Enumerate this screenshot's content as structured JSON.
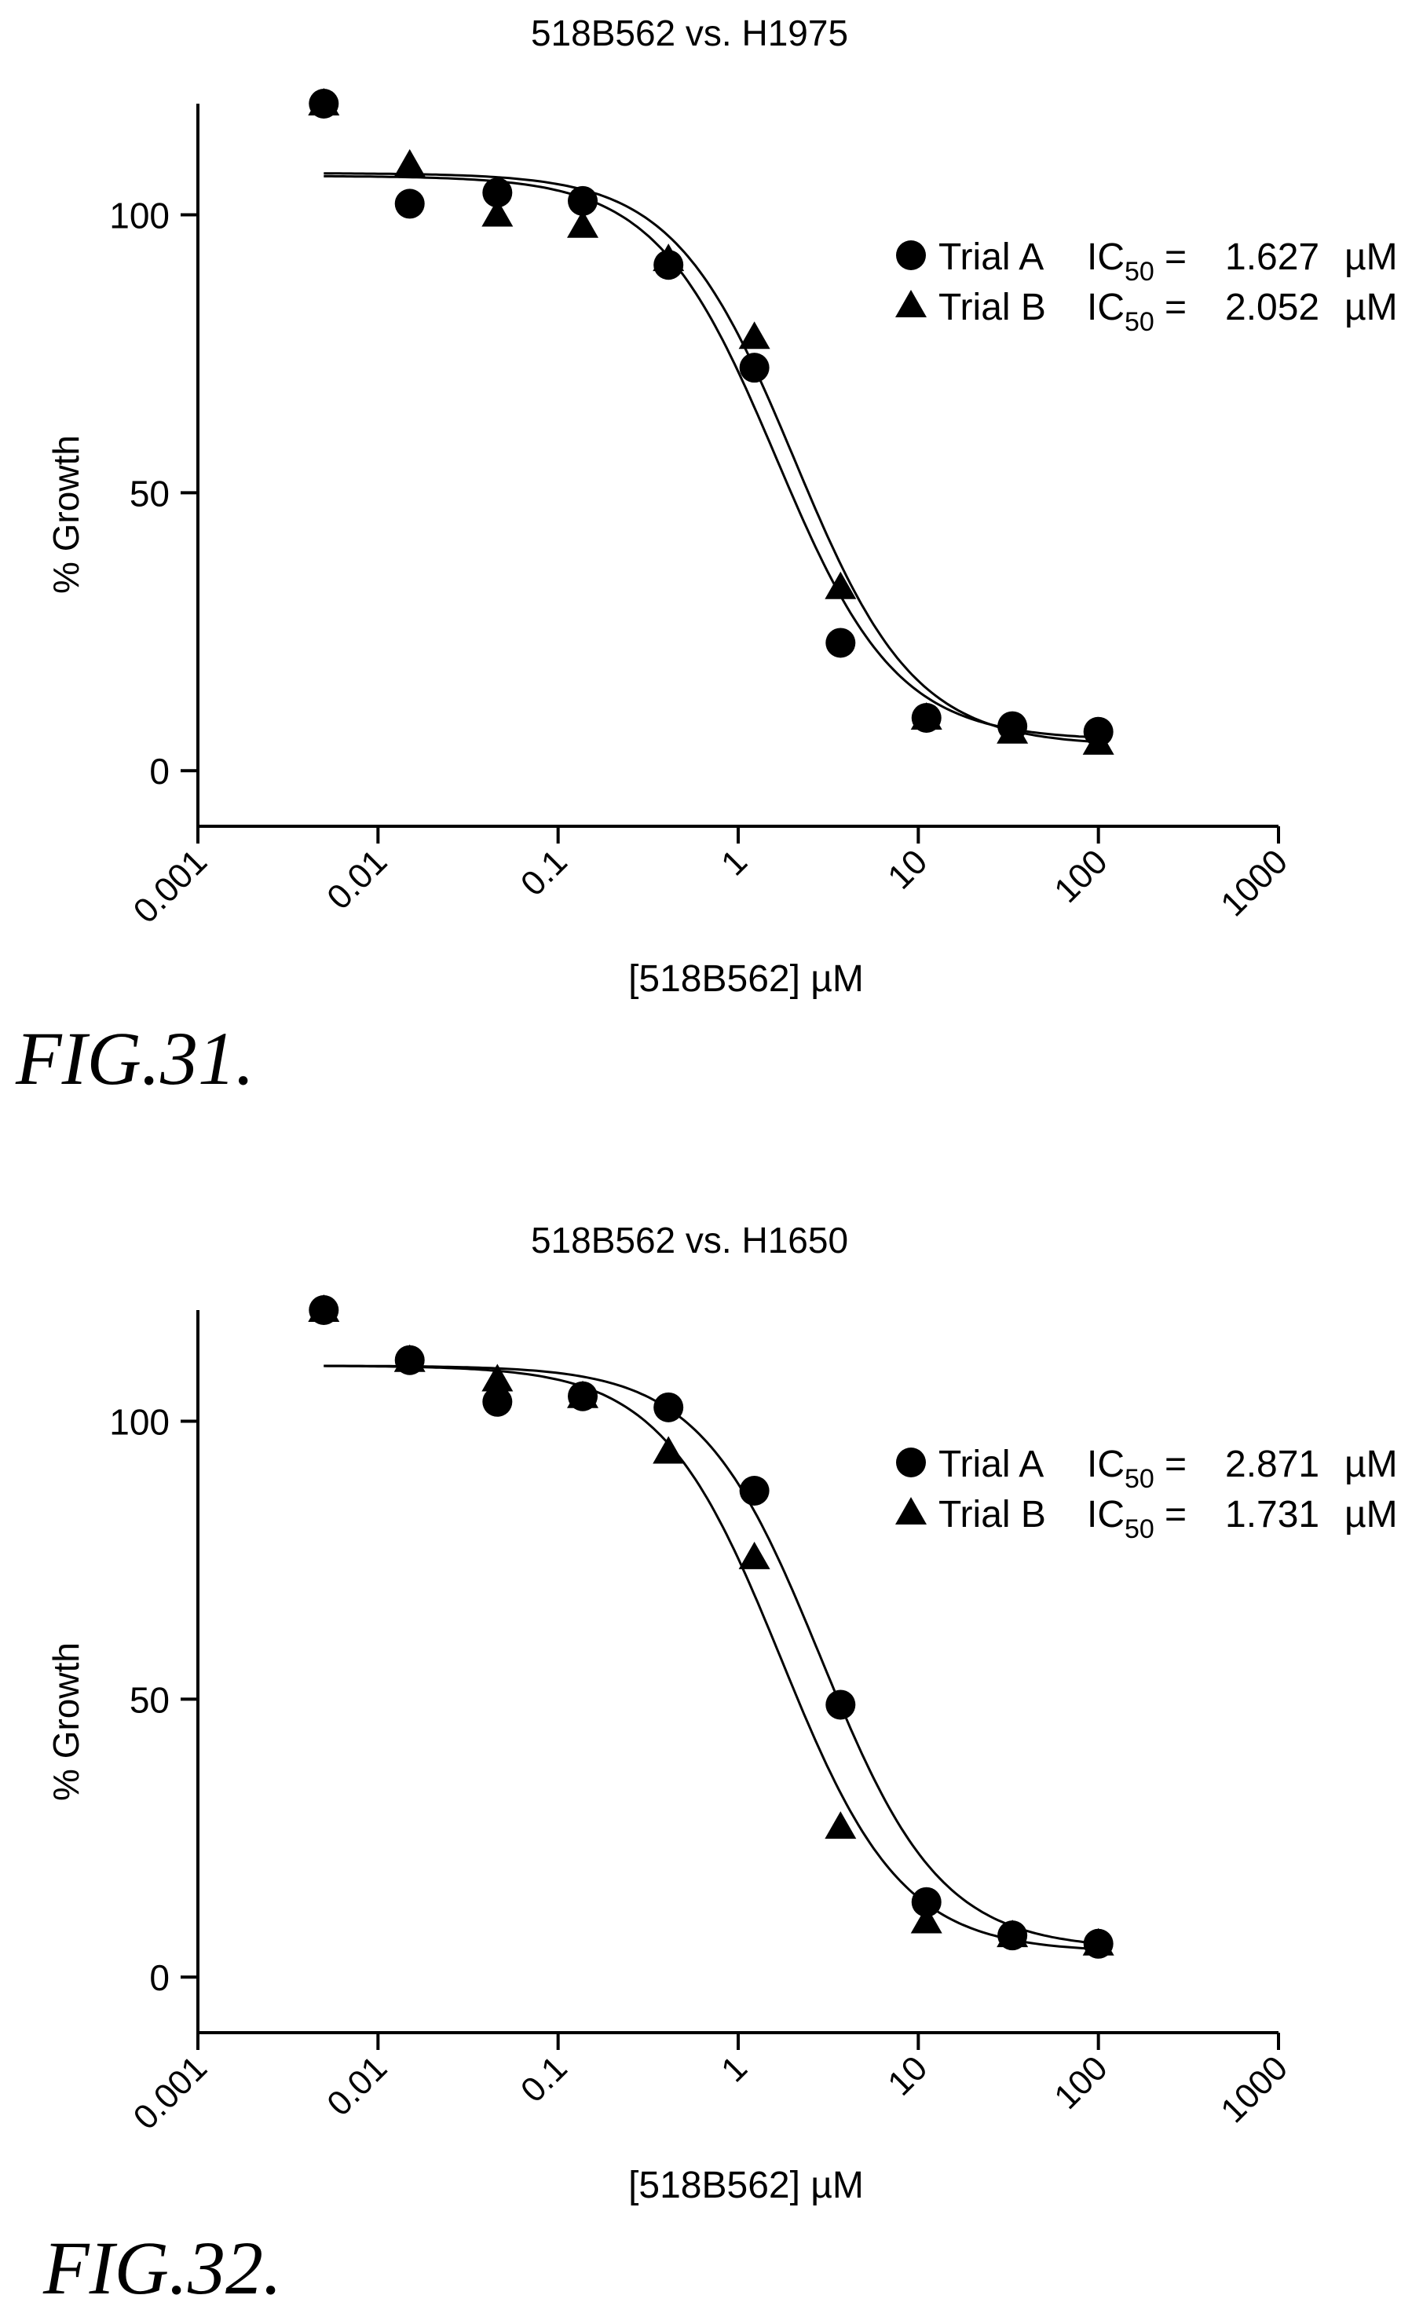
{
  "chart_data": [
    {
      "type": "scatter",
      "title": "518B562 vs. H1975",
      "figure_label": "FIG.31.",
      "xlabel": "[518B562] µM",
      "ylabel": "% Growth",
      "xscale": "log",
      "xlim": [
        0.001,
        1000
      ],
      "ylim": [
        -10,
        120
      ],
      "x_ticks": [
        "0.001",
        "0.01",
        "0.1",
        "1",
        "10",
        "100",
        "1000"
      ],
      "y_ticks": [
        "0",
        "50",
        "100"
      ],
      "grid": false,
      "legend_position": "right",
      "series": [
        {
          "name": "Trial A",
          "marker": "circle",
          "ic50_label": "IC",
          "ic50_sub": "50",
          "ic50_eq": "=",
          "ic50_value": "1.627",
          "ic50_unit": "µM",
          "top": 107,
          "bottom": 5.5,
          "ic50": 1.627,
          "hill": 1.3,
          "x": [
            0.005,
            0.015,
            0.046,
            0.137,
            0.41,
            1.23,
            3.7,
            11.1,
            33.3,
            100
          ],
          "y": [
            120,
            102,
            104,
            102.5,
            91,
            72.5,
            23,
            9.5,
            8,
            7
          ]
        },
        {
          "name": "Trial B",
          "marker": "triangle",
          "ic50_label": "IC",
          "ic50_sub": "50",
          "ic50_eq": "=",
          "ic50_value": "2.052",
          "ic50_unit": "µM",
          "top": 107.5,
          "bottom": 4.5,
          "ic50": 2.052,
          "hill": 1.3,
          "x": [
            0.005,
            0.015,
            0.046,
            0.137,
            0.41,
            1.23,
            3.7,
            11.1,
            33.3,
            100
          ],
          "y": [
            120,
            109,
            100,
            98,
            92,
            78,
            33,
            9.5,
            7,
            5
          ]
        }
      ]
    },
    {
      "type": "scatter",
      "title": "518B562 vs. H1650",
      "figure_label": "FIG.32.",
      "xlabel": "[518B562] µM",
      "ylabel": "% Growth",
      "xscale": "log",
      "xlim": [
        0.001,
        1000
      ],
      "ylim": [
        -10,
        120
      ],
      "x_ticks": [
        "0.001",
        "0.01",
        "0.1",
        "1",
        "10",
        "100",
        "1000"
      ],
      "y_ticks": [
        "0",
        "50",
        "100"
      ],
      "grid": false,
      "legend_position": "right",
      "series": [
        {
          "name": "Trial A",
          "marker": "circle",
          "ic50_label": "IC",
          "ic50_sub": "50",
          "ic50_eq": "=",
          "ic50_value": "2.871",
          "ic50_unit": "µM",
          "top": 110,
          "bottom": 5,
          "ic50": 2.871,
          "hill": 1.3,
          "x": [
            0.005,
            0.015,
            0.046,
            0.137,
            0.41,
            1.23,
            3.7,
            11.1,
            33.3,
            100
          ],
          "y": [
            120,
            111,
            103.5,
            104.5,
            102.5,
            87.5,
            49,
            13.5,
            7.5,
            6
          ]
        },
        {
          "name": "Trial B",
          "marker": "triangle",
          "ic50_label": "IC",
          "ic50_sub": "50",
          "ic50_eq": "=",
          "ic50_value": "1.731",
          "ic50_unit": "µM",
          "top": 110,
          "bottom": 4.5,
          "ic50": 1.731,
          "hill": 1.3,
          "x": [
            0.005,
            0.015,
            0.046,
            0.137,
            0.41,
            1.23,
            3.7,
            11.1,
            33.3,
            100
          ],
          "y": [
            120,
            111,
            107.5,
            104.5,
            94.5,
            75.5,
            27,
            10,
            7.5,
            6
          ]
        }
      ]
    }
  ]
}
